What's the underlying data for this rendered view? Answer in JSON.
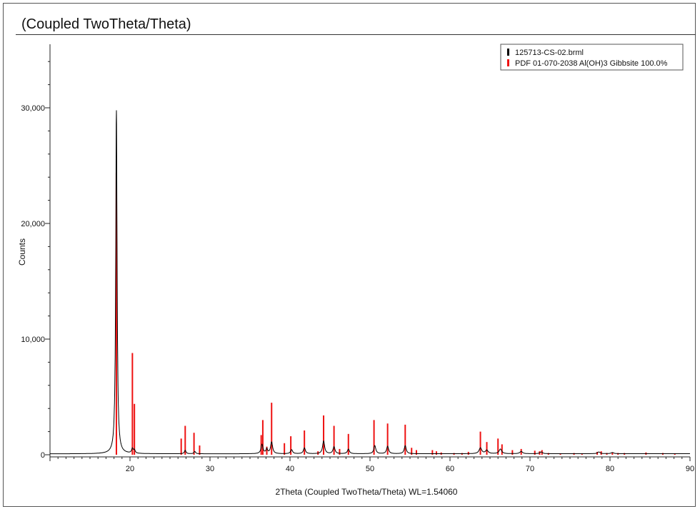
{
  "page": {
    "title": "(Coupled TwoTheta/Theta)"
  },
  "chart_data": {
    "type": "line",
    "title": "(Coupled TwoTheta/Theta)",
    "xlabel": "2Theta (Coupled TwoTheta/Theta) WL=1.54060",
    "ylabel": "Counts",
    "xlim": [
      10,
      90
    ],
    "ylim": [
      -300,
      35000
    ],
    "x_ticks": [
      20,
      30,
      40,
      50,
      60,
      70,
      80,
      90
    ],
    "y_ticks": [
      0,
      10000,
      20000,
      30000
    ],
    "y_tick_labels": [
      "0",
      "10,000",
      "20,000",
      "30,000"
    ],
    "grid": false,
    "legend_position": "top-right",
    "colors": {
      "measured": "#000000",
      "reference": "#ee1111"
    },
    "series": [
      {
        "name": "125713-CS-02.brml",
        "kind": "profile",
        "background": {
          "start": 80,
          "end": 90
        },
        "peaks": [
          [
            18.3,
            29700,
            0.1
          ],
          [
            20.3,
            400,
            0.12
          ],
          [
            20.55,
            280,
            0.12
          ],
          [
            26.9,
            300,
            0.12
          ],
          [
            28.1,
            200,
            0.12
          ],
          [
            36.5,
            800,
            0.15
          ],
          [
            37.1,
            400,
            0.12
          ],
          [
            37.7,
            1000,
            0.15
          ],
          [
            40.2,
            350,
            0.15
          ],
          [
            41.8,
            500,
            0.15
          ],
          [
            44.2,
            1100,
            0.15
          ],
          [
            45.5,
            600,
            0.15
          ],
          [
            47.3,
            400,
            0.15
          ],
          [
            50.6,
            700,
            0.15
          ],
          [
            52.2,
            650,
            0.15
          ],
          [
            54.4,
            700,
            0.15
          ],
          [
            63.8,
            500,
            0.2
          ],
          [
            64.6,
            300,
            0.2
          ],
          [
            66.3,
            400,
            0.2
          ],
          [
            68.9,
            200,
            0.2
          ],
          [
            71.4,
            150,
            0.2
          ],
          [
            78.6,
            150,
            0.2
          ],
          [
            80.3,
            100,
            0.2
          ]
        ]
      },
      {
        "name": "PDF 01-070-2038 Al(OH)3 Gibbsite  100.0%",
        "kind": "sticks",
        "sticks": [
          [
            18.3,
            24400
          ],
          [
            20.3,
            8800
          ],
          [
            20.55,
            4400
          ],
          [
            26.4,
            1400
          ],
          [
            26.9,
            2500
          ],
          [
            28.0,
            1900
          ],
          [
            28.7,
            800
          ],
          [
            36.4,
            1700
          ],
          [
            36.6,
            3000
          ],
          [
            37.1,
            700
          ],
          [
            37.7,
            4500
          ],
          [
            39.3,
            1000
          ],
          [
            40.1,
            1600
          ],
          [
            41.8,
            2100
          ],
          [
            43.5,
            300
          ],
          [
            44.2,
            3400
          ],
          [
            45.5,
            2500
          ],
          [
            46.2,
            500
          ],
          [
            47.3,
            1800
          ],
          [
            50.5,
            3000
          ],
          [
            52.2,
            2700
          ],
          [
            54.4,
            2600
          ],
          [
            55.2,
            600
          ],
          [
            55.8,
            400
          ],
          [
            57.8,
            400
          ],
          [
            58.3,
            300
          ],
          [
            58.9,
            200
          ],
          [
            60.5,
            150
          ],
          [
            61.5,
            150
          ],
          [
            62.3,
            250
          ],
          [
            63.8,
            2000
          ],
          [
            64.6,
            1100
          ],
          [
            66.0,
            1400
          ],
          [
            66.5,
            900
          ],
          [
            67.8,
            400
          ],
          [
            68.9,
            500
          ],
          [
            70.6,
            350
          ],
          [
            71.2,
            300
          ],
          [
            71.5,
            400
          ],
          [
            72.3,
            150
          ],
          [
            73.8,
            100
          ],
          [
            75.5,
            150
          ],
          [
            76.5,
            100
          ],
          [
            78.4,
            250
          ],
          [
            78.9,
            300
          ],
          [
            79.6,
            150
          ],
          [
            80.3,
            200
          ],
          [
            81.0,
            150
          ],
          [
            81.8,
            150
          ],
          [
            84.5,
            200
          ],
          [
            86.6,
            150
          ],
          [
            88.1,
            100
          ]
        ]
      }
    ]
  }
}
